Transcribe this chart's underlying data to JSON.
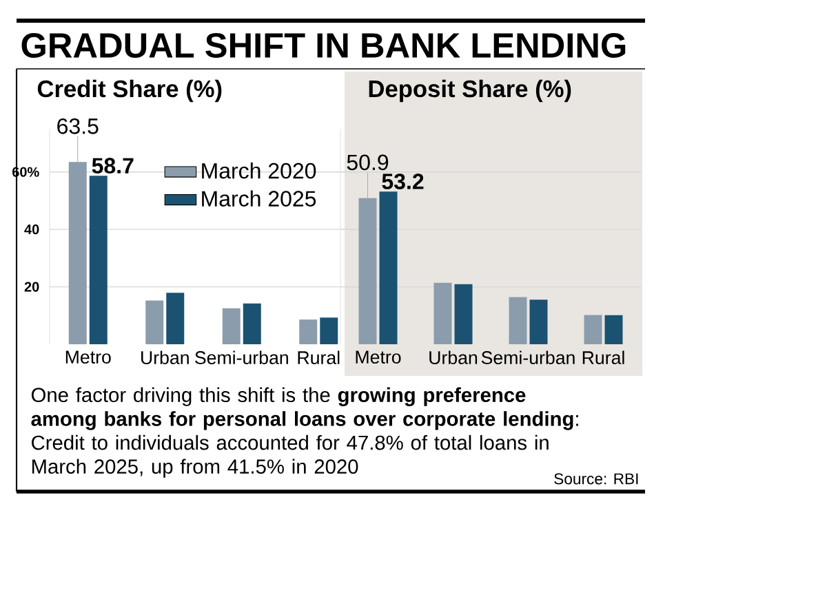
{
  "chart_data": [
    {
      "type": "bar",
      "title": "GRADUAL SHIFT IN BANK LENDING",
      "subtitle": "Credit Share (%)",
      "categories": [
        "Metro",
        "Urban",
        "Semi-urban",
        "Rural"
      ],
      "series": [
        {
          "name": "March 2020",
          "color": "#8b9cac",
          "values": [
            63.5,
            15.2,
            12.5,
            8.6
          ],
          "value_labels": [
            "63.5",
            null,
            null,
            null
          ]
        },
        {
          "name": "March 2025",
          "color": "#1b5272",
          "values": [
            58.7,
            17.9,
            14.2,
            9.3
          ],
          "value_labels": [
            "58.7",
            null,
            null,
            null
          ]
        }
      ],
      "ylim": [
        0,
        75
      ],
      "yticks": [
        20,
        40,
        {
          "value": 60,
          "label": "60%"
        }
      ],
      "grid": "y",
      "legend": "top right"
    },
    {
      "type": "bar",
      "subtitle": "Deposit Share (%)",
      "categories": [
        "Metro",
        "Urban",
        "Semi-urban",
        "Rural"
      ],
      "series": [
        {
          "color": "#8b9cac",
          "values": [
            50.9,
            21.4,
            16.4,
            10.2
          ],
          "value_labels": [
            "50.9",
            null,
            null,
            null
          ]
        },
        {
          "color": "#1b5272",
          "values": [
            53.2,
            20.9,
            15.5,
            10.1
          ],
          "value_labels": [
            "53.2",
            null,
            null,
            null
          ]
        }
      ],
      "ylim": [
        0,
        75
      ],
      "yticks": [
        20,
        40,
        60
      ],
      "grid": "y",
      "tick_labels": "x",
      "annotations": [
        "One factor driving this shift is the **growing preference among banks for personal loans over corporate lending**: Credit to individuals accounted for 47.8% of total loans in March 2025, up from 41.5% in 2020",
        "Source: RBI"
      ]
    }
  ]
}
